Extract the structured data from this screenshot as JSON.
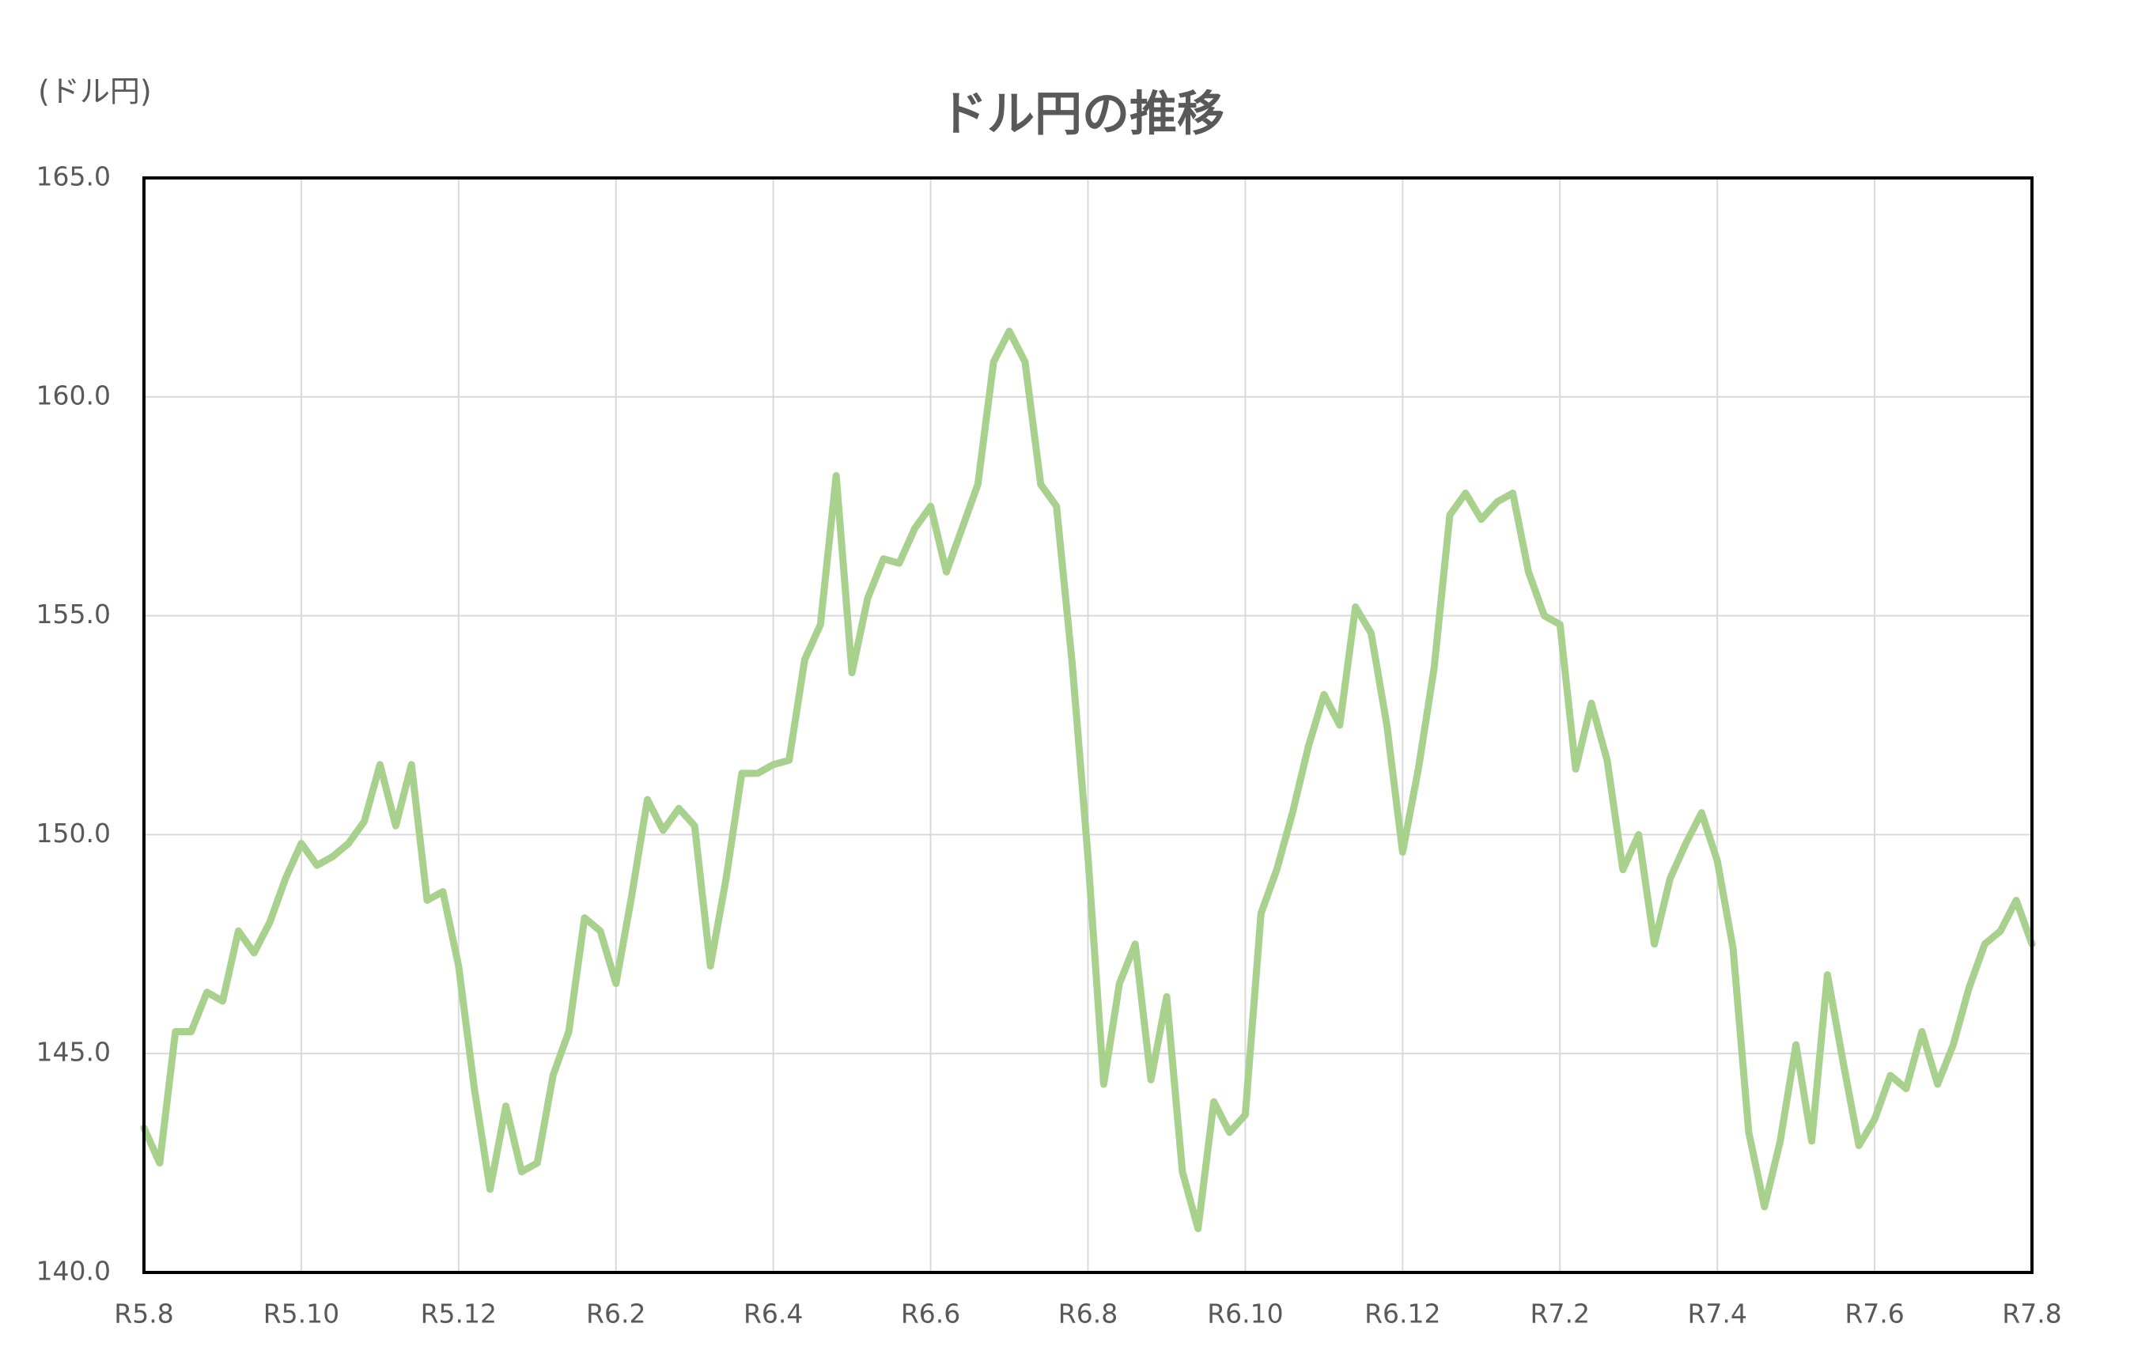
{
  "chart_data": {
    "type": "line",
    "title": "ドル円の推移",
    "y_label": "(ドル円)",
    "categories": [
      "R5.8",
      null,
      null,
      null,
      null,
      null,
      null,
      null,
      null,
      null,
      "R5.10",
      null,
      null,
      null,
      null,
      null,
      null,
      null,
      null,
      null,
      "R5.12",
      null,
      null,
      null,
      null,
      null,
      null,
      null,
      null,
      null,
      "R6.2",
      null,
      null,
      null,
      null,
      null,
      null,
      null,
      null,
      null,
      "R6.4",
      null,
      null,
      null,
      null,
      null,
      null,
      null,
      null,
      null,
      "R6.6",
      null,
      null,
      null,
      null,
      null,
      null,
      null,
      null,
      null,
      "R6.8",
      null,
      null,
      null,
      null,
      null,
      null,
      null,
      null,
      null,
      "R6.10",
      null,
      null,
      null,
      null,
      null,
      null,
      null,
      null,
      null,
      "R6.12",
      null,
      null,
      null,
      null,
      null,
      null,
      null,
      null,
      null,
      "R7.2",
      null,
      null,
      null,
      null,
      null,
      null,
      null,
      null,
      null,
      "R7.4",
      null,
      null,
      null,
      null,
      null,
      null,
      null,
      null,
      null,
      "R7.6",
      null,
      null,
      null,
      null,
      null,
      null,
      null,
      null,
      null,
      "R7.8"
    ],
    "values": [
      143.3,
      142.5,
      145.5,
      145.5,
      146.4,
      146.2,
      147.8,
      147.3,
      148.0,
      149.0,
      149.8,
      149.3,
      149.5,
      149.8,
      150.3,
      151.6,
      150.2,
      151.6,
      148.5,
      148.7,
      147.0,
      144.2,
      141.9,
      143.8,
      142.3,
      142.5,
      144.5,
      145.5,
      148.1,
      147.8,
      146.6,
      148.6,
      150.8,
      150.1,
      150.6,
      150.2,
      147.0,
      149.0,
      151.4,
      151.4,
      151.6,
      151.7,
      154.0,
      154.8,
      158.2,
      153.7,
      155.4,
      156.3,
      156.2,
      157.0,
      157.5,
      156.0,
      157.0,
      158.0,
      160.8,
      161.5,
      160.8,
      158.0,
      157.5,
      153.9,
      149.5,
      144.3,
      146.6,
      147.5,
      144.4,
      146.3,
      142.3,
      141.0,
      143.9,
      143.2,
      143.6,
      148.2,
      149.2,
      150.5,
      152.0,
      153.2,
      152.5,
      155.2,
      154.6,
      152.5,
      149.6,
      151.5,
      153.8,
      157.3,
      157.8,
      157.2,
      157.6,
      157.8,
      156.0,
      155.0,
      154.8,
      151.5,
      153.0,
      151.7,
      149.2,
      150.0,
      147.5,
      149.0,
      149.8,
      150.5,
      149.4,
      147.4,
      143.2,
      141.5,
      143.0,
      145.2,
      143.0,
      146.8,
      144.8,
      142.9,
      143.5,
      144.5,
      144.2,
      145.5,
      144.3,
      145.2,
      146.5,
      147.5,
      147.8,
      148.5,
      147.5
    ],
    "color": "#a9d18e",
    "ylim": [
      140,
      165
    ],
    "yticks": [
      {
        "value": 140,
        "label": "140.0"
      },
      {
        "value": 145,
        "label": "145.0"
      },
      {
        "value": 150,
        "label": "150.0"
      },
      {
        "value": 155,
        "label": "155.0"
      },
      {
        "value": 160,
        "label": "160.0"
      },
      {
        "value": 165,
        "label": "165.0"
      }
    ],
    "grid": true
  }
}
